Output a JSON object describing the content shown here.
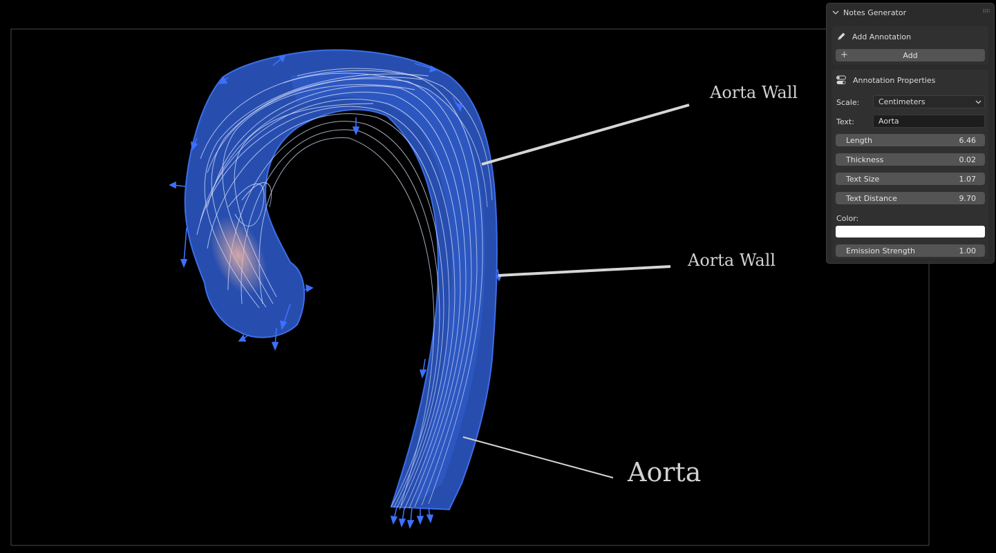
{
  "viewport": {
    "labels": {
      "top": "Aorta Wall",
      "middle": "Aorta Wall",
      "bottom": "Aorta"
    }
  },
  "panel": {
    "title": "Notes Generator",
    "icons": {
      "collapse": "chevron-down-icon",
      "drag": "drag-grip-icon"
    },
    "add_annotation": {
      "title": "Add Annotation",
      "icon": "pencil-icon",
      "button_label": "Add",
      "button_icon": "plus-icon"
    },
    "properties": {
      "title": "Annotation Properties",
      "icon": "toggles-icon",
      "scale_label": "Scale:",
      "scale_value": "Centimeters",
      "text_label": "Text:",
      "text_value": "Aorta",
      "length_label": "Length",
      "length_value": "6.46",
      "thickness_label": "Thickness",
      "thickness_value": "0.02",
      "text_size_label": "Text Size",
      "text_size_value": "1.07",
      "text_distance_label": "Text Distance",
      "text_distance_value": "9.70",
      "color_label": "Color:",
      "color_value": "#ffffff",
      "emission_label": "Emission Strength",
      "emission_value": "1.00"
    }
  }
}
